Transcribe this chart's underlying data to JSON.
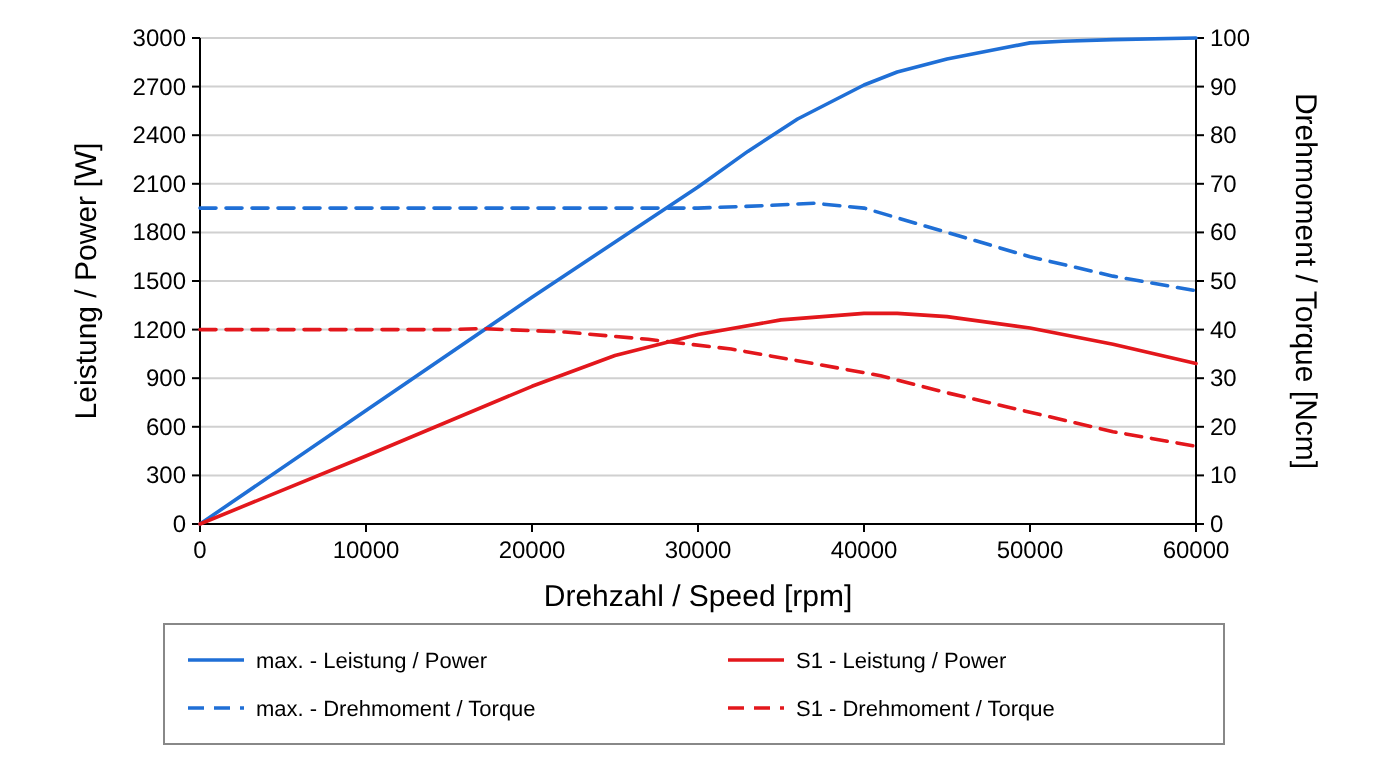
{
  "chart_data": {
    "type": "line",
    "xlabel": "Drehzahl / Speed [rpm]",
    "ylabel": "Leistung / Power [W]",
    "y2label": "Drehmoment / Torque [Ncm]",
    "xlim": [
      0,
      60000
    ],
    "xticks": [
      0,
      10000,
      20000,
      30000,
      40000,
      50000,
      60000
    ],
    "ylim": [
      0,
      3000
    ],
    "yticks": [
      0,
      300,
      600,
      900,
      1200,
      1500,
      1800,
      2100,
      2400,
      2700,
      3000
    ],
    "y2lim": [
      0,
      100
    ],
    "y2ticks": [
      0,
      10,
      20,
      30,
      40,
      50,
      60,
      70,
      80,
      90,
      100
    ],
    "grid": "y",
    "legend": "bottom",
    "series": [
      {
        "name": "max. - Leistung / Power",
        "color": "#1f6fd6",
        "line_style": "solid",
        "x": [
          0,
          10000,
          20000,
          30000,
          33000,
          36000,
          40000,
          42000,
          45000,
          48000,
          50000,
          52000,
          55000,
          60000
        ],
        "values": [
          0,
          700,
          1400,
          2080,
          2300,
          2500,
          2710,
          2790,
          2870,
          2930,
          2970,
          2980,
          2990,
          3000
        ]
      },
      {
        "name": "S1 - Leistung / Power",
        "color": "#e3171c",
        "line_style": "solid",
        "x": [
          0,
          10000,
          20000,
          25000,
          30000,
          35000,
          40000,
          42000,
          45000,
          50000,
          55000,
          60000
        ],
        "values": [
          0,
          420,
          850,
          1040,
          1170,
          1260,
          1300,
          1300,
          1280,
          1210,
          1110,
          990
        ]
      },
      {
        "name": "max. - Drehmoment / Torque",
        "color": "#1f6fd6",
        "line_style": "dashed",
        "axis": "y2",
        "x": [
          0,
          10000,
          20000,
          30000,
          34000,
          37000,
          40000,
          45000,
          50000,
          55000,
          60000
        ],
        "values": [
          65,
          65,
          65,
          65,
          65.5,
          66,
          65,
          60,
          55,
          51,
          48
        ]
      },
      {
        "name": "S1 - Drehmoment / Torque",
        "color": "#e3171c",
        "line_style": "dashed",
        "axis": "y2",
        "x": [
          0,
          10000,
          15000,
          17000,
          22000,
          27000,
          32000,
          37000,
          41000,
          45000,
          50000,
          55000,
          60000
        ],
        "values": [
          40,
          40,
          40,
          40.2,
          39.5,
          38,
          36,
          33,
          30.5,
          27,
          23,
          19,
          16
        ]
      }
    ]
  }
}
